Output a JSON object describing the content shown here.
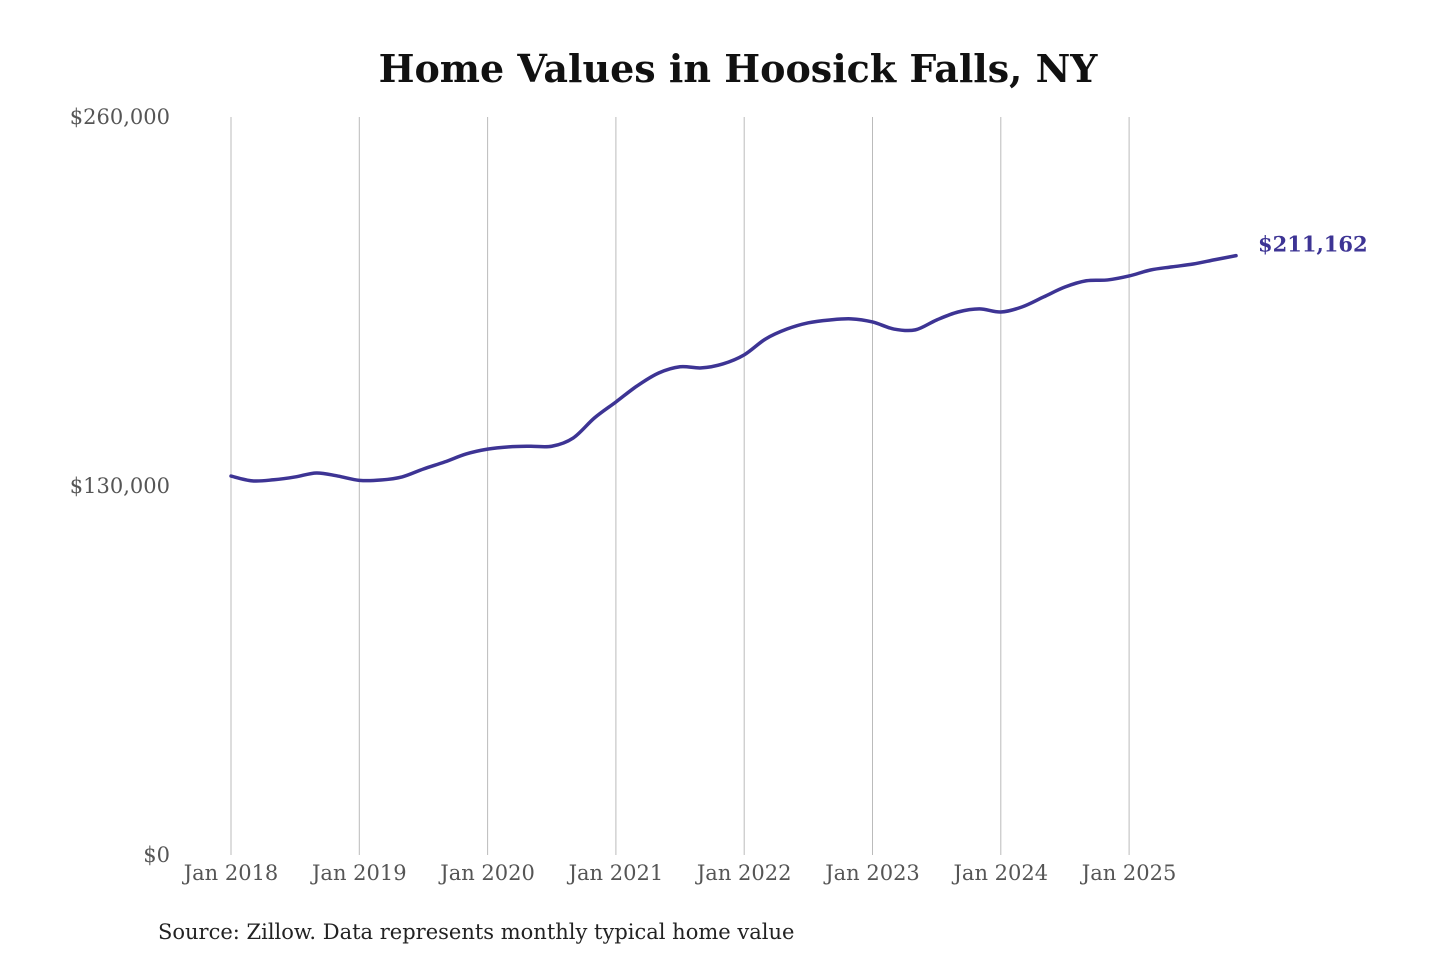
{
  "chart_data": {
    "type": "line",
    "title": "Home Values in Hoosick Falls, NY",
    "source": "Source: Zillow. Data represents monthly typical home value",
    "ylim": [
      0,
      260000
    ],
    "yticks": [
      0,
      130000,
      260000
    ],
    "ytick_labels": [
      "$0",
      "$130,000",
      "$260,000"
    ],
    "xticks": [
      "2018-01",
      "2019-01",
      "2020-01",
      "2021-01",
      "2022-01",
      "2023-01",
      "2024-01",
      "2025-01"
    ],
    "xtick_labels": [
      "Jan 2018",
      "Jan 2019",
      "Jan 2020",
      "Jan 2021",
      "Jan 2022",
      "Jan 2023",
      "Jan 2024",
      "Jan 2025"
    ],
    "grid": "vertical",
    "line_color": "#3d3494",
    "end_label": "$211,162",
    "x": [
      "2018-01",
      "2018-03",
      "2018-05",
      "2018-07",
      "2018-09",
      "2018-11",
      "2019-01",
      "2019-03",
      "2019-05",
      "2019-07",
      "2019-09",
      "2019-11",
      "2020-01",
      "2020-03",
      "2020-05",
      "2020-07",
      "2020-09",
      "2020-11",
      "2021-01",
      "2021-03",
      "2021-05",
      "2021-07",
      "2021-09",
      "2021-11",
      "2022-01",
      "2022-03",
      "2022-05",
      "2022-07",
      "2022-09",
      "2022-11",
      "2023-01",
      "2023-03",
      "2023-05",
      "2023-07",
      "2023-09",
      "2023-11",
      "2024-01",
      "2024-03",
      "2024-05",
      "2024-07",
      "2024-09",
      "2024-11",
      "2025-01",
      "2025-03",
      "2025-05",
      "2025-07",
      "2025-09",
      "2025-11"
    ],
    "values": [
      133500,
      131800,
      132200,
      133200,
      134600,
      133500,
      132000,
      132100,
      133200,
      136000,
      138500,
      141300,
      143000,
      143800,
      144000,
      144000,
      146900,
      154000,
      159600,
      165300,
      169800,
      172000,
      171600,
      173000,
      176200,
      181800,
      185300,
      187500,
      188500,
      188900,
      187800,
      185300,
      185000,
      188500,
      191300,
      192400,
      191300,
      193100,
      196600,
      200100,
      202300,
      202600,
      204000,
      206100,
      207200,
      208200,
      209700,
      211162
    ]
  }
}
